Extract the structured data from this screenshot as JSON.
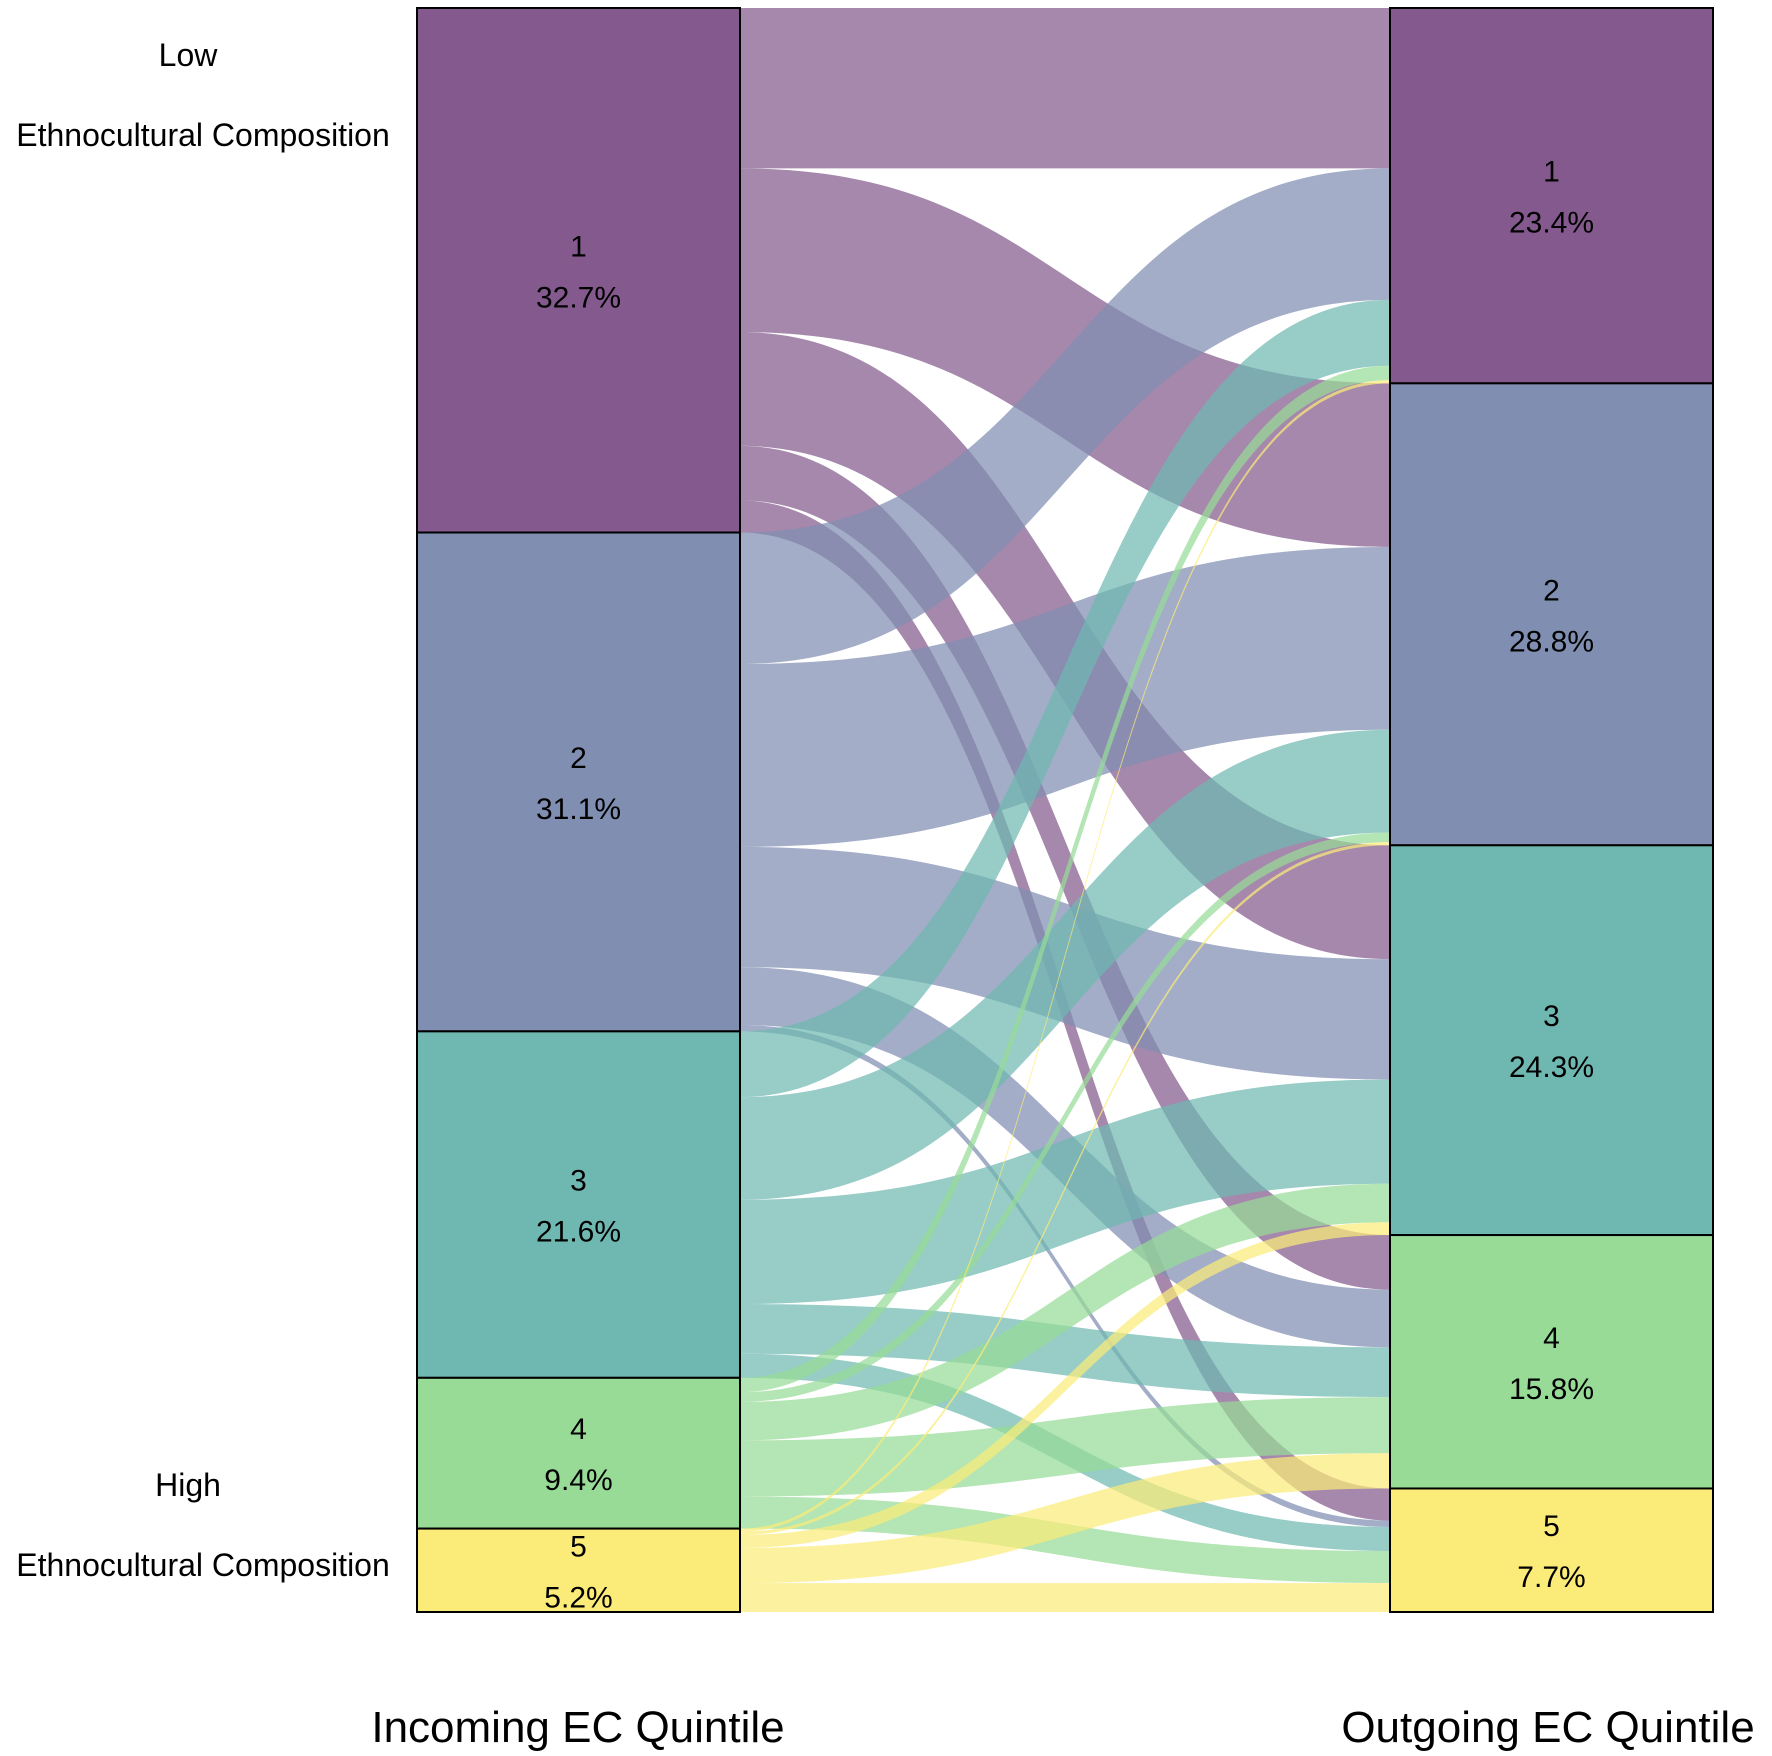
{
  "chart_data": {
    "type": "alluvial",
    "title": "",
    "side_labels": {
      "low_line1": "Low",
      "low_line2": "Ethnocultural Composition",
      "high_line1": "High",
      "high_line2": "Ethnocultural Composition"
    },
    "axis_titles": {
      "left": "Incoming EC Quintile",
      "right": "Outgoing EC Quintile"
    },
    "colors": [
      "#845a8e",
      "#808eb2",
      "#6fb8b2",
      "#97db97",
      "#fbeb78"
    ],
    "incoming": [
      {
        "label": "1",
        "pct": "32.7%",
        "value": 32.7
      },
      {
        "label": "2",
        "pct": "31.1%",
        "value": 31.1
      },
      {
        "label": "3",
        "pct": "21.6%",
        "value": 21.6
      },
      {
        "label": "4",
        "pct": "9.4%",
        "value": 9.4
      },
      {
        "label": "5",
        "pct": "5.2%",
        "value": 5.2
      }
    ],
    "outgoing": [
      {
        "label": "1",
        "pct": "23.4%",
        "value": 23.4
      },
      {
        "label": "2",
        "pct": "28.8%",
        "value": 28.8
      },
      {
        "label": "3",
        "pct": "24.3%",
        "value": 24.3
      },
      {
        "label": "4",
        "pct": "15.8%",
        "value": 15.8
      },
      {
        "label": "5",
        "pct": "7.7%",
        "value": 7.7
      }
    ],
    "flows_note": "flows[i][j] = share of total (%) moving from incoming quintile i+1 to outgoing quintile j+1",
    "flows": [
      [
        10.0,
        10.2,
        7.1,
        3.4,
        2.0
      ],
      [
        8.2,
        11.4,
        7.5,
        3.6,
        0.4
      ],
      [
        4.1,
        6.4,
        6.5,
        3.1,
        1.5
      ],
      [
        0.9,
        0.6,
        2.4,
        3.5,
        2.0
      ],
      [
        0.2,
        0.2,
        0.8,
        2.2,
        1.8
      ]
    ]
  }
}
